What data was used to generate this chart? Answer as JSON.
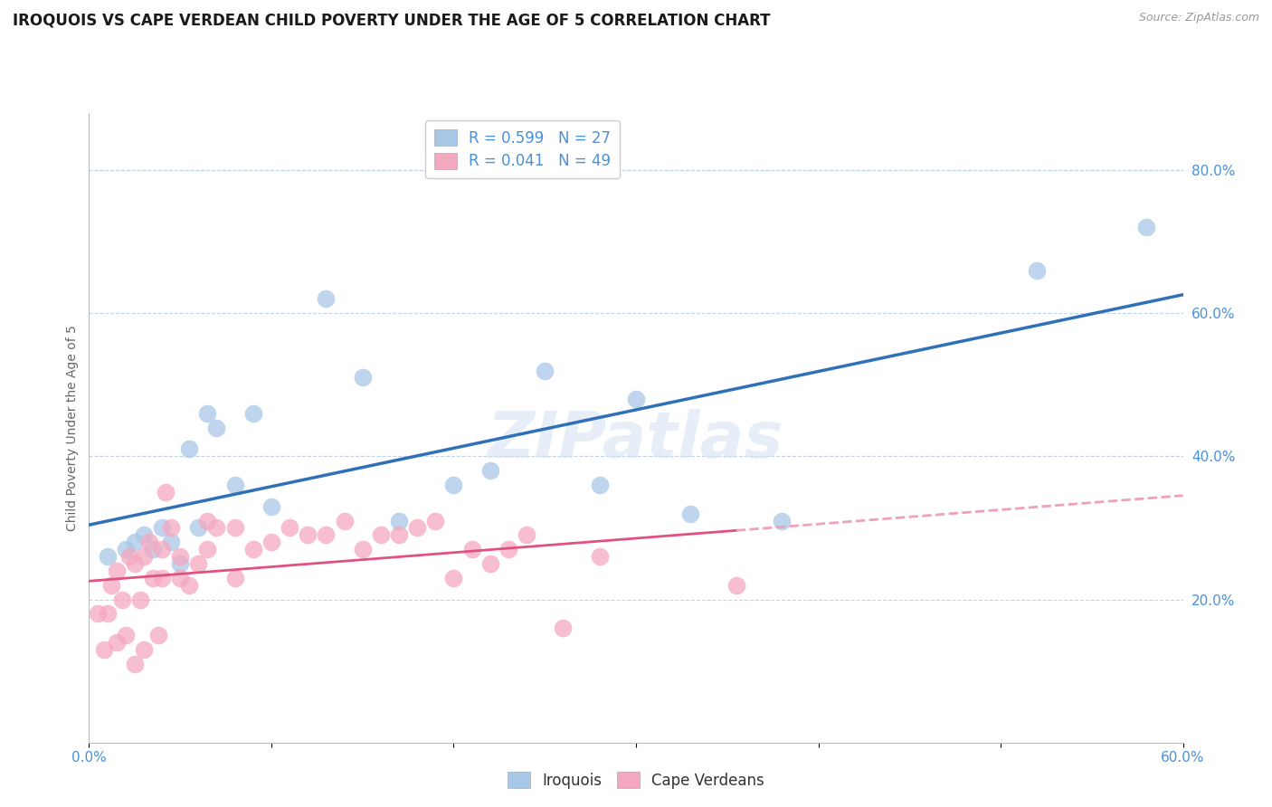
{
  "title": "IROQUOIS VS CAPE VERDEAN CHILD POVERTY UNDER THE AGE OF 5 CORRELATION CHART",
  "source": "Source: ZipAtlas.com",
  "ylabel": "Child Poverty Under the Age of 5",
  "xlim": [
    0.0,
    0.6
  ],
  "ylim": [
    0.0,
    0.88
  ],
  "xticks": [
    0.0,
    0.1,
    0.2,
    0.3,
    0.4,
    0.5,
    0.6
  ],
  "xticklabels": [
    "0.0%",
    "",
    "",
    "",
    "",
    "",
    "60.0%"
  ],
  "yticks_right": [
    0.2,
    0.4,
    0.6,
    0.8
  ],
  "ytick_right_labels": [
    "20.0%",
    "40.0%",
    "60.0%",
    "80.0%"
  ],
  "iroquois_R": 0.599,
  "iroquois_N": 27,
  "capeverdean_R": 0.041,
  "capeverdean_N": 49,
  "iroquois_color": "#A8C8E8",
  "capeverdean_color": "#F4A8C0",
  "iroquois_line_color": "#3070B8",
  "capeverdean_line_color": "#E05080",
  "capeverdean_dash_color": "#F0A0B8",
  "background_color": "#FFFFFF",
  "grid_color": "#C0D4E8",
  "legend_label_iroquois": "Iroquois",
  "legend_label_capeverdean": "Cape Verdeans",
  "iroquois_x": [
    0.01,
    0.02,
    0.025,
    0.03,
    0.035,
    0.04,
    0.045,
    0.05,
    0.055,
    0.06,
    0.065,
    0.07,
    0.08,
    0.09,
    0.1,
    0.13,
    0.15,
    0.17,
    0.2,
    0.22,
    0.25,
    0.28,
    0.3,
    0.33,
    0.38,
    0.52,
    0.58
  ],
  "iroquois_y": [
    0.26,
    0.27,
    0.28,
    0.29,
    0.27,
    0.3,
    0.28,
    0.25,
    0.41,
    0.3,
    0.46,
    0.44,
    0.36,
    0.46,
    0.33,
    0.62,
    0.51,
    0.31,
    0.36,
    0.38,
    0.52,
    0.36,
    0.48,
    0.32,
    0.31,
    0.66,
    0.72
  ],
  "capeverdean_x": [
    0.005,
    0.008,
    0.01,
    0.012,
    0.015,
    0.015,
    0.018,
    0.02,
    0.022,
    0.025,
    0.025,
    0.028,
    0.03,
    0.03,
    0.033,
    0.035,
    0.038,
    0.04,
    0.04,
    0.042,
    0.045,
    0.05,
    0.05,
    0.055,
    0.06,
    0.065,
    0.065,
    0.07,
    0.08,
    0.08,
    0.09,
    0.1,
    0.11,
    0.12,
    0.13,
    0.14,
    0.15,
    0.16,
    0.17,
    0.18,
    0.19,
    0.2,
    0.21,
    0.22,
    0.23,
    0.24,
    0.26,
    0.28,
    0.355
  ],
  "capeverdean_y": [
    0.18,
    0.13,
    0.18,
    0.22,
    0.24,
    0.14,
    0.2,
    0.15,
    0.26,
    0.25,
    0.11,
    0.2,
    0.26,
    0.13,
    0.28,
    0.23,
    0.15,
    0.27,
    0.23,
    0.35,
    0.3,
    0.26,
    0.23,
    0.22,
    0.25,
    0.27,
    0.31,
    0.3,
    0.3,
    0.23,
    0.27,
    0.28,
    0.3,
    0.29,
    0.29,
    0.31,
    0.27,
    0.29,
    0.29,
    0.3,
    0.31,
    0.23,
    0.27,
    0.25,
    0.27,
    0.29,
    0.16,
    0.26,
    0.22
  ],
  "title_fontsize": 12,
  "axis_label_fontsize": 10,
  "tick_fontsize": 11,
  "legend_fontsize": 12
}
